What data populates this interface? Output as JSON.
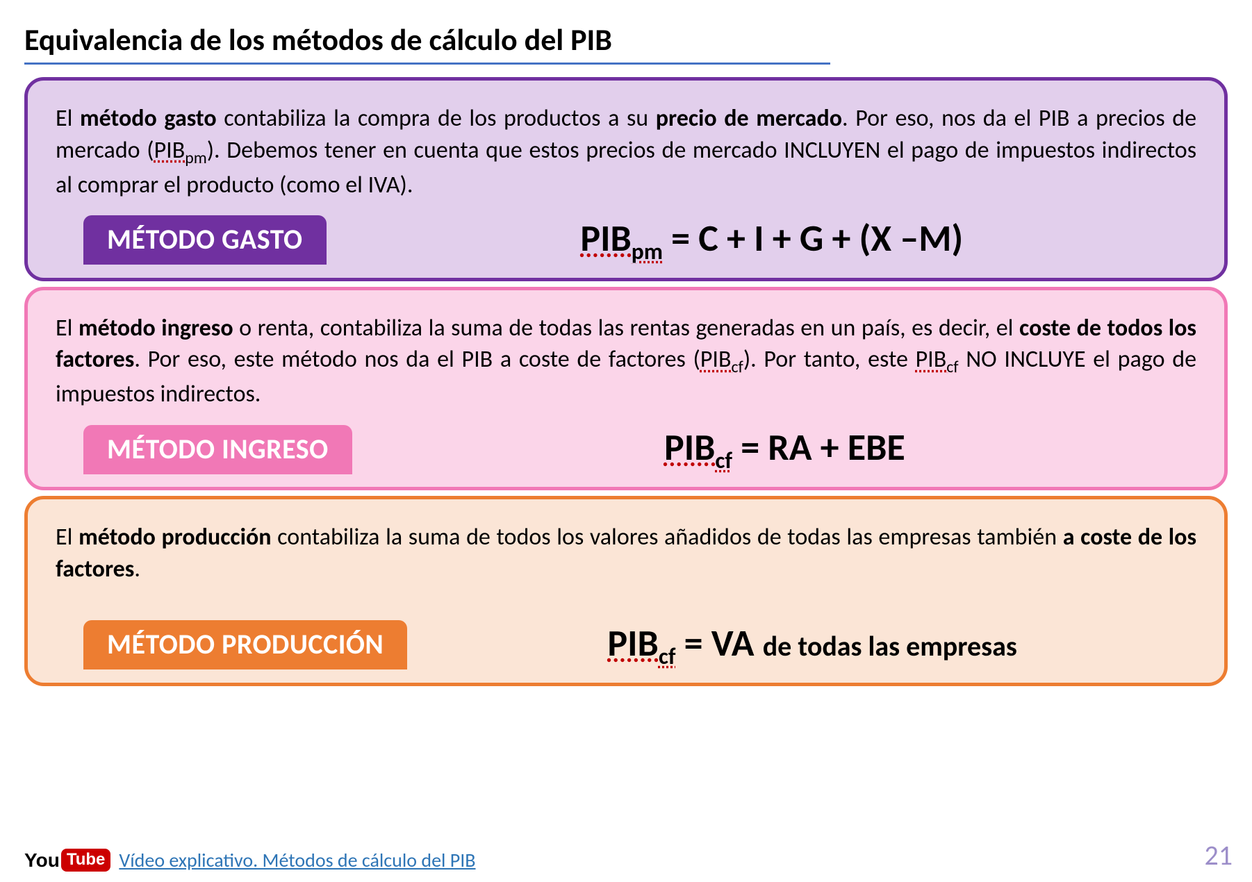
{
  "title": "Equivalencia de los métodos de cálculo del PIB",
  "panels": {
    "gasto": {
      "border_color": "#7030a0",
      "bg_color": "#e2cfec",
      "tag_bg": "#7030a0",
      "tag_label": "MÉTODO GASTO",
      "text_html": "El <b>método gasto</b> contabiliza la compra de los productos a su <b>precio de mercado</b>. Por eso, nos da el PIB a precios de mercado (<span class='dotted'>PIB<sub style='font-size:0.7em'>pm</sub></span>). Debemos tener en cuenta que estos precios de mercado INCLUYEN el pago de impuestos indirectos al comprar el producto (como el IVA).",
      "formula_html": "<span class='dotted'>PIB<sub>pm</sub></span> = C + I + G + (X –M)"
    },
    "ingreso": {
      "border_color": "#f178b6",
      "bg_color": "#fbd5e9",
      "tag_bg": "#f178b6",
      "tag_label": "MÉTODO INGRESO",
      "text_html": "El <b>método ingreso</b> o renta, contabiliza la suma de todas las rentas generadas en un país, es decir, el <b>coste de todos los factores</b>. Por eso, este método nos da el PIB a coste de factores (<span class='dotted'>PIB<sub style='font-size:0.7em'>cf</sub></span>). Por tanto, este <span class='dotted'>PIB<sub style='font-size:0.7em'>cf</sub></span> NO INCLUYE el pago de impuestos indirectos.",
      "formula_html": "<span class='dotted'>PIB<sub>cf</sub></span> = RA + EBE"
    },
    "produccion": {
      "border_color": "#ed7d31",
      "bg_color": "#fbe5d6",
      "tag_bg": "#ed7d31",
      "tag_label": "MÉTODO PRODUCCIÓN",
      "text_html": "El <b>método producción</b> contabiliza la suma de todos los valores añadidos de todas las empresas también <b>a coste de los factores</b>.",
      "formula_html": "<span class='dotted'>PIB<sub>cf</sub></span> = VA <span class='suffix'>de todas las empresas</span>"
    }
  },
  "footer": {
    "you": "You",
    "tube": "Tube",
    "link_text": "Vídeo explicativo. Métodos de cálculo del PIB"
  },
  "page_number": "21"
}
